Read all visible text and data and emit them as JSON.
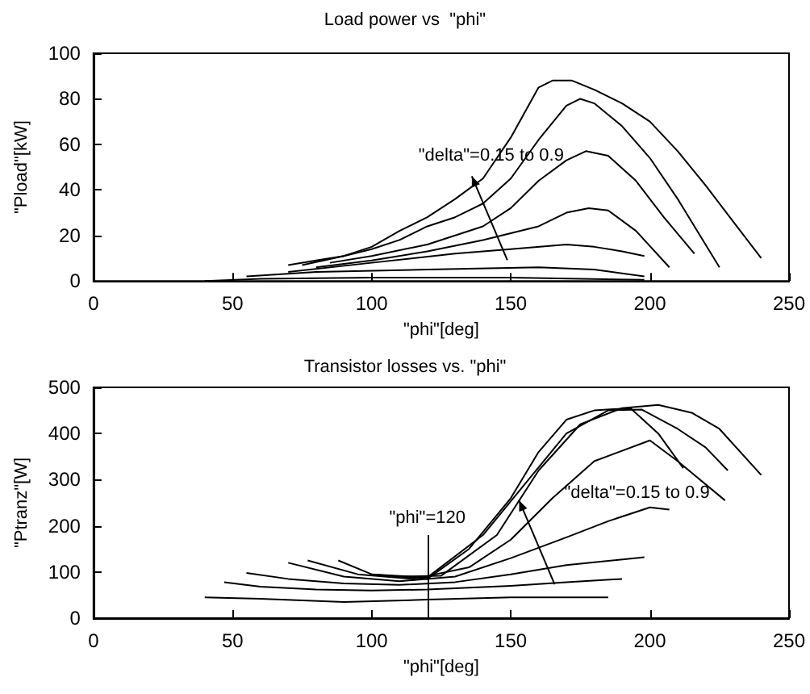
{
  "chart_data": [
    {
      "type": "line",
      "title": "Load power vs  \"phi\"",
      "xlabel": "\"phi\"[deg]",
      "ylabel": "\"Pload\"[kW]",
      "xlim": [
        0,
        250
      ],
      "ylim": [
        0,
        100
      ],
      "xticks": [
        0,
        50,
        100,
        150,
        200,
        250
      ],
      "yticks": [
        0,
        20,
        40,
        60,
        80,
        100
      ],
      "grid": false,
      "marker": "none",
      "line_style": "solid",
      "annotations": [
        {
          "text": "\"delta\"=0.15 to 0.9",
          "x": 136,
          "y": 46
        }
      ],
      "series": [
        {
          "color": "#000000",
          "x": [
            70,
            80,
            90,
            100,
            110,
            120,
            130,
            140,
            150,
            160,
            165,
            172,
            180,
            190,
            200,
            210,
            220,
            230,
            240
          ],
          "values": [
            7,
            9,
            11,
            15,
            22,
            28,
            36,
            45,
            63,
            85,
            88,
            88,
            84,
            78,
            70,
            57,
            42,
            26,
            10
          ]
        },
        {
          "color": "#000000",
          "x": [
            75,
            90,
            100,
            110,
            120,
            130,
            140,
            150,
            160,
            170,
            175,
            180,
            190,
            200,
            210,
            225
          ],
          "values": [
            7,
            11,
            14,
            18,
            24,
            28,
            34,
            45,
            62,
            77,
            80,
            78,
            68,
            54,
            36,
            6
          ]
        },
        {
          "color": "#000000",
          "x": [
            85,
            100,
            120,
            140,
            150,
            160,
            170,
            177,
            185,
            195,
            205,
            216
          ],
          "values": [
            8,
            11,
            16,
            24,
            32,
            44,
            53,
            57,
            55,
            44,
            28,
            12
          ]
        },
        {
          "color": "#000000",
          "x": [
            80,
            100,
            120,
            140,
            160,
            170,
            178,
            185,
            195,
            207
          ],
          "values": [
            6,
            9,
            13,
            18,
            24,
            30,
            32,
            31,
            22,
            6
          ]
        },
        {
          "color": "#000000",
          "x": [
            70,
            100,
            130,
            150,
            170,
            180,
            190,
            198
          ],
          "values": [
            4,
            8,
            12,
            14,
            16,
            15,
            13,
            11
          ]
        },
        {
          "color": "#000000",
          "x": [
            55,
            80,
            120,
            160,
            180,
            198
          ],
          "values": [
            2,
            4,
            5,
            6,
            5,
            2
          ]
        },
        {
          "color": "#000000",
          "x": [
            40,
            60,
            100,
            150,
            198
          ],
          "values": [
            0,
            1,
            1.5,
            1.5,
            0.5
          ]
        }
      ]
    },
    {
      "type": "line",
      "title": "Transistor losses vs. \"phi\"",
      "xlabel": "\"phi\"[deg]",
      "ylabel": "\"Ptranz\"[W]",
      "xlim": [
        0,
        250
      ],
      "ylim": [
        0,
        500
      ],
      "xticks": [
        0,
        50,
        100,
        150,
        200,
        250
      ],
      "yticks": [
        0,
        100,
        200,
        300,
        400,
        500
      ],
      "grid": false,
      "marker": "none",
      "line_style": "solid",
      "annotations": [
        {
          "text": "\"delta\"=0.15 to 0.9",
          "x": 153,
          "y": 255
        }
      ],
      "ref_lines": [
        {
          "axis": "x",
          "value": 120,
          "label": "\"phi\"=120"
        }
      ],
      "series": [
        {
          "color": "#000000",
          "x": [
            88,
            100,
            120,
            135,
            150,
            160,
            170,
            180,
            193,
            203,
            212
          ],
          "values": [
            125,
            95,
            85,
            150,
            260,
            360,
            430,
            450,
            455,
            400,
            325
          ]
        },
        {
          "color": "#000000",
          "x": [
            100,
            120,
            140,
            155,
            170,
            185,
            197,
            210,
            220,
            228
          ],
          "values": [
            95,
            88,
            180,
            290,
            400,
            450,
            452,
            410,
            370,
            320
          ]
        },
        {
          "color": "#000000",
          "x": [
            110,
            125,
            145,
            160,
            175,
            190,
            203,
            215,
            225,
            240
          ],
          "values": [
            90,
            92,
            180,
            320,
            420,
            455,
            462,
            445,
            410,
            310
          ]
        },
        {
          "color": "#000000",
          "x": [
            77,
            95,
            115,
            135,
            150,
            165,
            180,
            200,
            210,
            227
          ],
          "values": [
            125,
            95,
            85,
            110,
            170,
            260,
            340,
            385,
            340,
            255
          ]
        },
        {
          "color": "#000000",
          "x": [
            70,
            90,
            110,
            130,
            150,
            170,
            185,
            200,
            207
          ],
          "values": [
            120,
            90,
            80,
            90,
            130,
            175,
            210,
            240,
            235
          ]
        },
        {
          "color": "#000000",
          "x": [
            55,
            70,
            90,
            110,
            130,
            150,
            170,
            198
          ],
          "values": [
            98,
            85,
            75,
            72,
            78,
            95,
            115,
            132
          ]
        },
        {
          "color": "#000000",
          "x": [
            47,
            60,
            80,
            100,
            120,
            150,
            170,
            190
          ],
          "values": [
            78,
            68,
            62,
            60,
            62,
            70,
            78,
            85
          ]
        },
        {
          "color": "#000000",
          "x": [
            40,
            60,
            90,
            120,
            150,
            185
          ],
          "values": [
            45,
            42,
            35,
            40,
            45,
            45
          ]
        }
      ]
    }
  ]
}
